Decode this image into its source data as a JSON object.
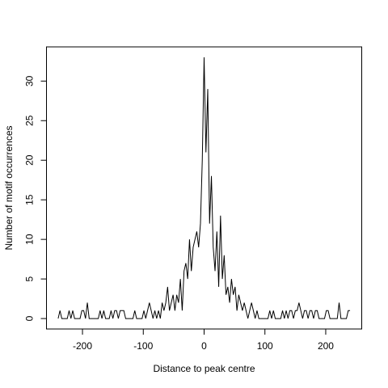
{
  "chart_data": {
    "type": "line",
    "xlabel": "Distance to peak centre",
    "ylabel": "Number of motif occurrences",
    "color": "#000000",
    "x": [
      -240,
      -237,
      -234,
      -231,
      -228,
      -225,
      -222,
      -219,
      -216,
      -213,
      -210,
      -207,
      -204,
      -201,
      -198,
      -195,
      -192,
      -189,
      -186,
      -183,
      -180,
      -177,
      -174,
      -171,
      -168,
      -165,
      -162,
      -159,
      -156,
      -153,
      -150,
      -147,
      -144,
      -141,
      -138,
      -135,
      -132,
      -129,
      -126,
      -123,
      -120,
      -117,
      -114,
      -111,
      -108,
      -105,
      -102,
      -99,
      -96,
      -93,
      -90,
      -87,
      -84,
      -81,
      -78,
      -75,
      -72,
      -69,
      -66,
      -63,
      -60,
      -57,
      -54,
      -51,
      -48,
      -45,
      -42,
      -39,
      -36,
      -33,
      -30,
      -27,
      -24,
      -21,
      -18,
      -15,
      -12,
      -9,
      -6,
      -3,
      0,
      3,
      6,
      9,
      12,
      15,
      18,
      21,
      24,
      27,
      30,
      33,
      36,
      39,
      42,
      45,
      48,
      51,
      54,
      57,
      60,
      63,
      66,
      69,
      72,
      75,
      78,
      81,
      84,
      87,
      90,
      93,
      96,
      99,
      102,
      105,
      108,
      111,
      114,
      117,
      120,
      123,
      126,
      129,
      132,
      135,
      138,
      141,
      144,
      147,
      150,
      153,
      156,
      159,
      162,
      165,
      168,
      171,
      174,
      177,
      180,
      183,
      186,
      189,
      192,
      195,
      198,
      201,
      204,
      207,
      210,
      213,
      216,
      219,
      222,
      225,
      228,
      231,
      234,
      237,
      240
    ],
    "values": [
      0,
      1,
      0,
      0,
      0,
      0,
      1,
      0,
      1,
      0,
      0,
      0,
      0,
      1,
      1,
      0,
      2,
      0,
      0,
      0,
      0,
      0,
      0,
      1,
      0,
      1,
      0,
      0,
      0,
      1,
      0,
      1,
      1,
      0,
      1,
      1,
      1,
      0,
      0,
      0,
      0,
      0,
      1,
      0,
      0,
      0,
      0,
      1,
      0,
      1,
      2,
      1,
      0,
      1,
      0,
      1,
      0,
      2,
      1,
      2,
      4,
      1,
      2,
      3,
      1,
      3,
      2,
      5,
      1,
      6,
      7,
      5,
      10,
      6,
      9,
      10,
      11,
      9,
      12,
      20,
      33,
      21,
      29,
      12,
      18,
      9,
      6,
      11,
      4,
      13,
      5,
      8,
      3,
      4,
      2,
      5,
      3,
      4,
      1,
      3,
      2,
      1,
      2,
      1,
      0,
      1,
      2,
      1,
      0,
      1,
      0,
      0,
      0,
      0,
      0,
      0,
      1,
      0,
      1,
      0,
      0,
      0,
      0,
      1,
      0,
      1,
      0,
      1,
      1,
      0,
      1,
      1,
      2,
      1,
      0,
      1,
      1,
      0,
      1,
      1,
      0,
      1,
      1,
      0,
      0,
      0,
      0,
      1,
      1,
      0,
      0,
      0,
      0,
      0,
      2,
      0,
      0,
      0,
      0,
      1,
      1
    ],
    "xlim": [
      -259.2,
      259.2
    ],
    "xticks": [
      -200,
      -100,
      0,
      100,
      200
    ],
    "ylim": [
      -1.32,
      34.32
    ],
    "yticks": [
      0,
      5,
      10,
      15,
      20,
      25,
      30
    ]
  }
}
